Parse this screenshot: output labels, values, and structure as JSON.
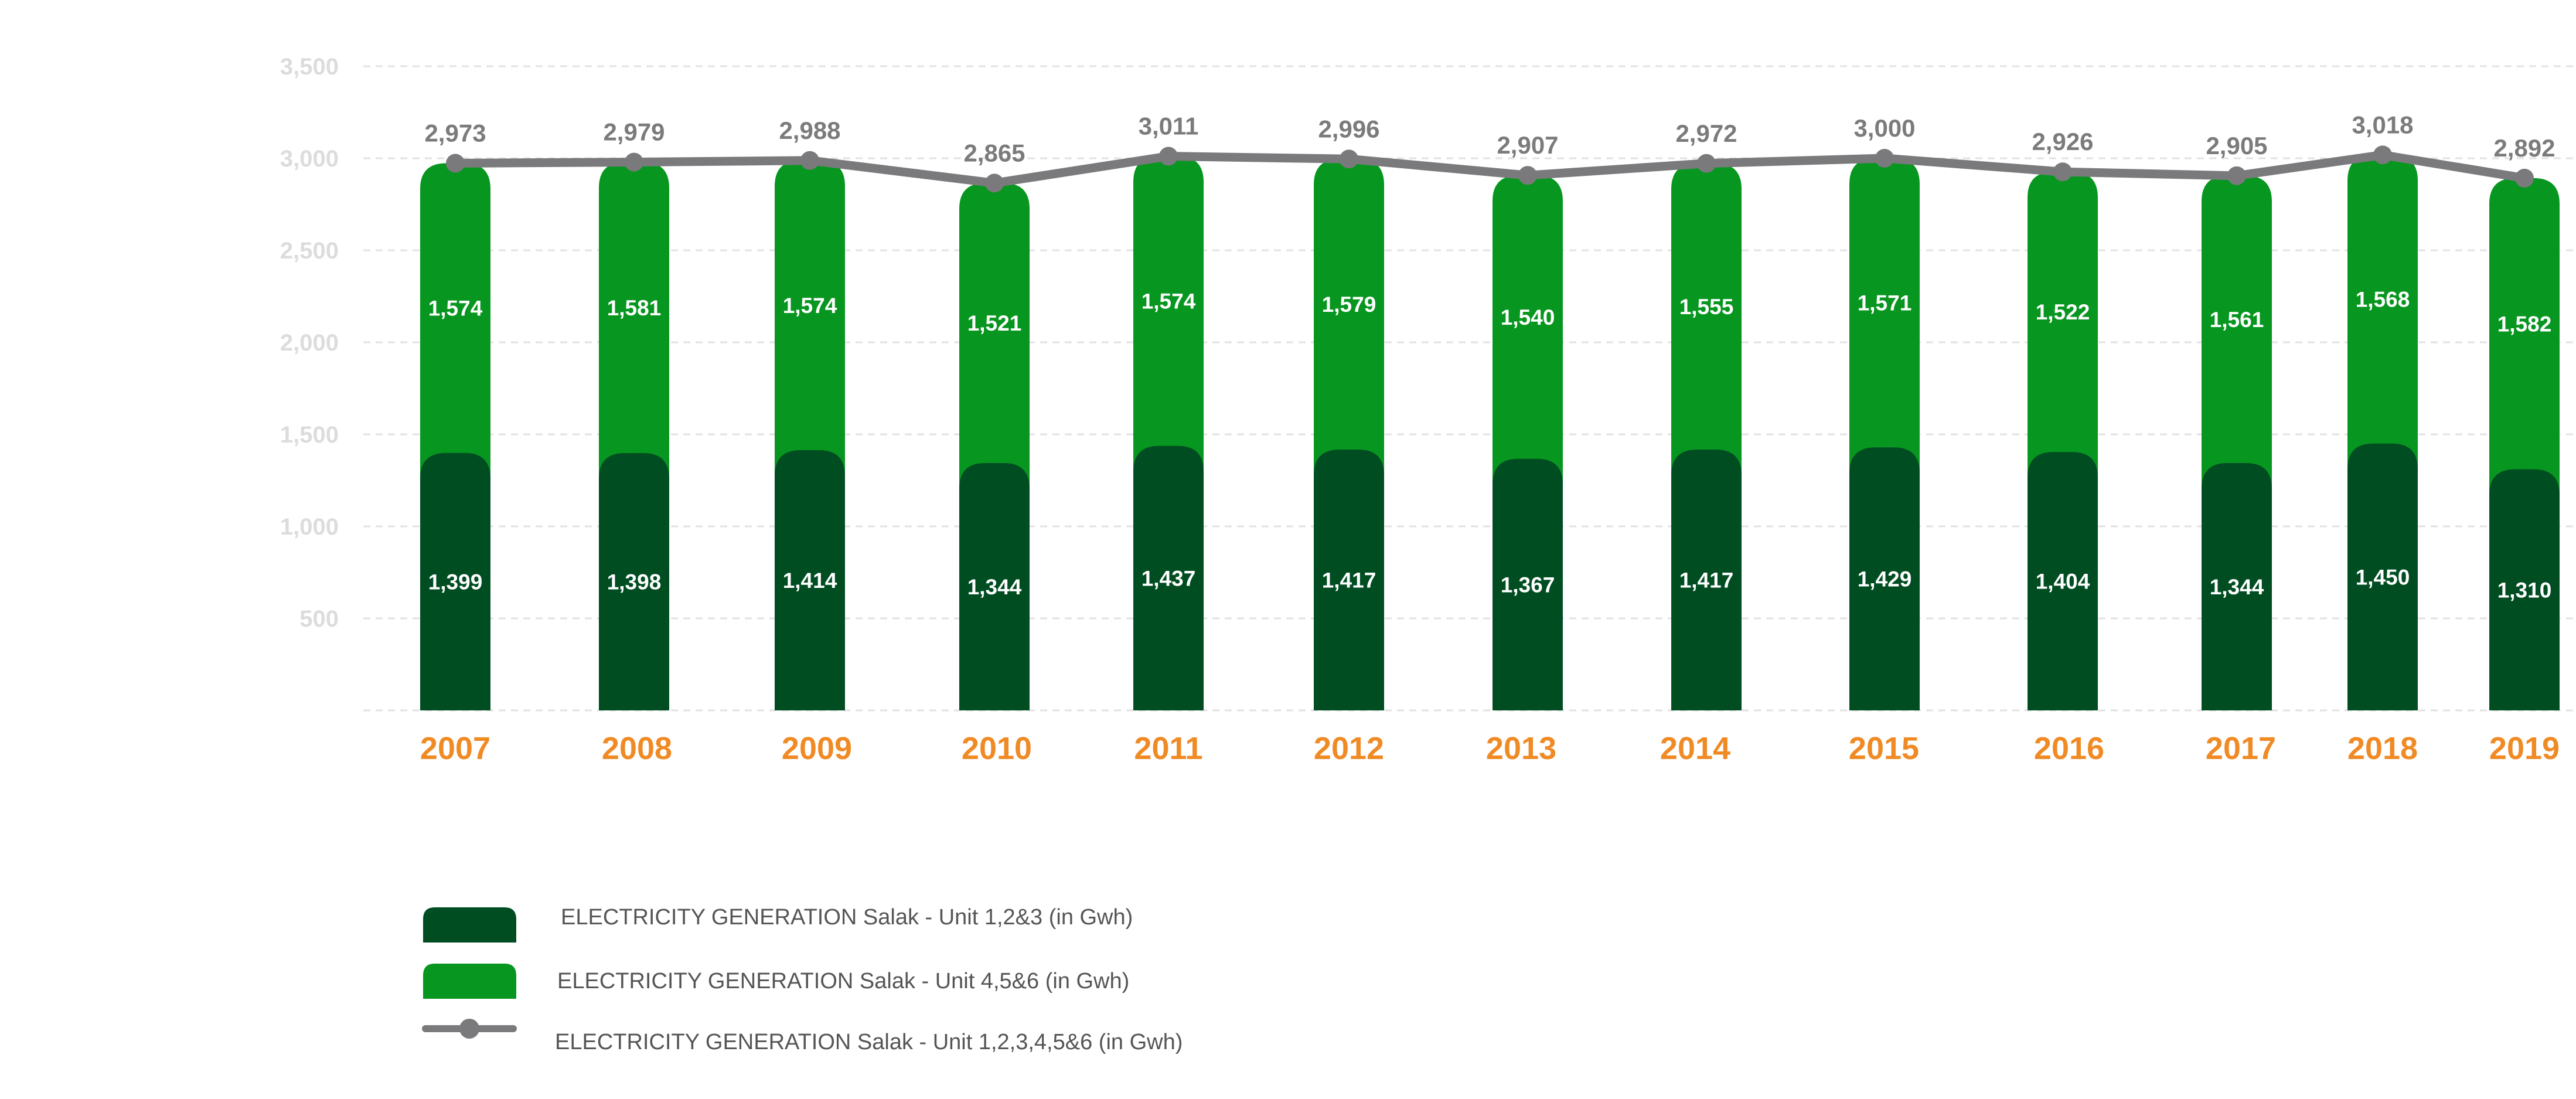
{
  "colors": {
    "unit123": "#004d22",
    "unit456": "#07961f",
    "total_line": "#7a7a7c",
    "year_label": "#f08a24",
    "y_tick": "#dcdcdc",
    "grid": "#e2e2e2"
  },
  "chart_data": {
    "type": "bar",
    "stacked": true,
    "categories": [
      "2007",
      "2008",
      "2009",
      "2010",
      "2011",
      "2012",
      "2013",
      "2014",
      "2015",
      "2016",
      "2017",
      "2018",
      "2019"
    ],
    "series": [
      {
        "name": "ELECTRICITY GENERATION Salak - Unit 1,2&3 (in Gwh)",
        "type": "bar",
        "values": [
          1399,
          1398,
          1414,
          1344,
          1437,
          1417,
          1367,
          1417,
          1429,
          1404,
          1344,
          1450,
          1310
        ],
        "labels": [
          "1,399",
          "1,398",
          "1,414",
          "1,344",
          "1,437",
          "1,417",
          "1,367",
          "1,417",
          "1,429",
          "1,404",
          "1,344",
          "1,450",
          "1,310"
        ]
      },
      {
        "name": "ELECTRICITY GENERATION Salak - Unit 4,5&6 (in Gwh)",
        "type": "bar",
        "values": [
          1574,
          1581,
          1574,
          1521,
          1574,
          1579,
          1540,
          1555,
          1571,
          1522,
          1561,
          1568,
          1582
        ],
        "labels": [
          "1,574",
          "1,581",
          "1,574",
          "1,521",
          "1,574",
          "1,579",
          "1,540",
          "1,555",
          "1,571",
          "1,522",
          "1,561",
          "1,568",
          "1,582"
        ]
      },
      {
        "name": "ELECTRICITY GENERATION Salak - Unit 1,2,3,4,5&6 (in Gwh)",
        "type": "line",
        "values": [
          2973,
          2979,
          2988,
          2865,
          3011,
          2996,
          2907,
          2972,
          3000,
          2926,
          2905,
          3018,
          2892
        ],
        "labels": [
          "2,973",
          "2,979",
          "2,988",
          "2,865",
          "3,011",
          "2,996",
          "2,907",
          "2,972",
          "3,000",
          "2,926",
          "2,905",
          "3,018",
          "2,892"
        ]
      }
    ],
    "y_ticks": [
      {
        "value": 500,
        "label": "500"
      },
      {
        "value": 1000,
        "label": "1,000"
      },
      {
        "value": 1500,
        "label": "1,500"
      },
      {
        "value": 2000,
        "label": "2,000"
      },
      {
        "value": 2500,
        "label": "2,500"
      },
      {
        "value": 3000,
        "label": "3,000"
      },
      {
        "value": 3500,
        "label": "3,500"
      }
    ],
    "ylim": [
      0,
      3500
    ],
    "grid": true,
    "legend_position": "bottom-left"
  }
}
